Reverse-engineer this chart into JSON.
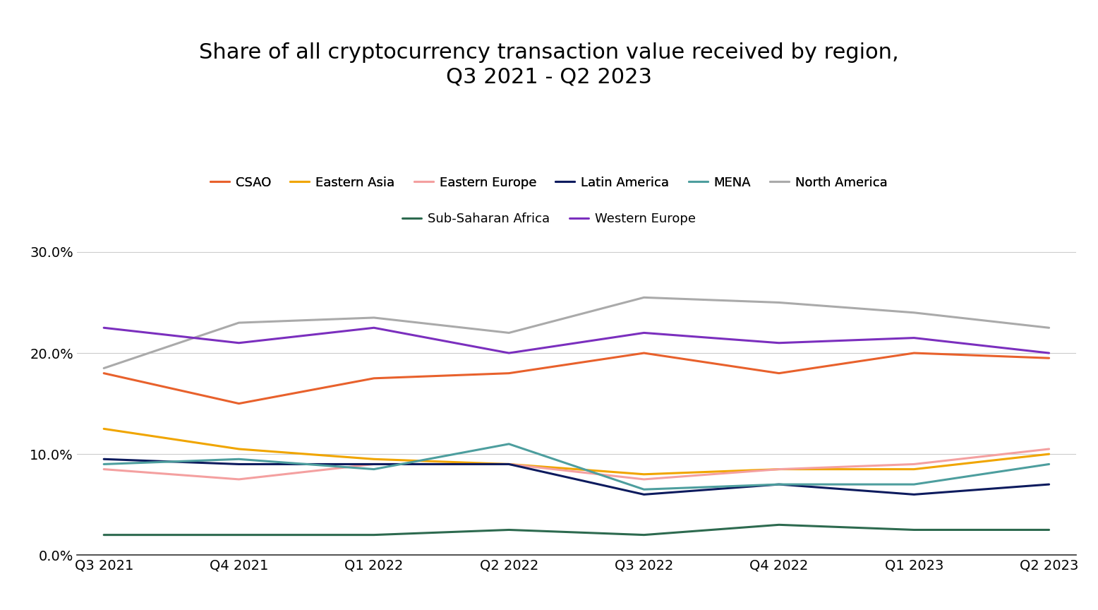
{
  "title": "Share of all cryptocurrency transaction value received by region,\nQ3 2021 - Q2 2023",
  "x_labels": [
    "Q3 2021",
    "Q4 2021",
    "Q1 2022",
    "Q2 2022",
    "Q3 2022",
    "Q4 2022",
    "Q1 2023",
    "Q2 2023"
  ],
  "series": {
    "CSAO": {
      "color": "#E8612C",
      "values": [
        18.0,
        15.0,
        17.5,
        18.0,
        20.0,
        18.0,
        20.0,
        19.5
      ]
    },
    "Eastern Asia": {
      "color": "#F0A500",
      "values": [
        12.5,
        10.5,
        9.5,
        9.0,
        8.0,
        8.5,
        8.5,
        10.0
      ]
    },
    "Eastern Europe": {
      "color": "#F4A0A0",
      "values": [
        8.5,
        7.5,
        9.0,
        9.0,
        7.5,
        8.5,
        9.0,
        10.5
      ]
    },
    "Latin America": {
      "color": "#0D1B5E",
      "values": [
        9.5,
        9.0,
        9.0,
        9.0,
        6.0,
        7.0,
        6.0,
        7.0
      ]
    },
    "MENA": {
      "color": "#4D9E9E",
      "values": [
        9.0,
        9.5,
        8.5,
        11.0,
        6.5,
        7.0,
        7.0,
        9.0
      ]
    },
    "North America": {
      "color": "#AAAAAA",
      "values": [
        18.5,
        23.0,
        23.5,
        22.0,
        25.5,
        25.0,
        24.0,
        22.5
      ]
    },
    "Sub-Saharan Africa": {
      "color": "#2D6A4F",
      "values": [
        2.0,
        2.0,
        2.0,
        2.5,
        2.0,
        3.0,
        2.5,
        2.5
      ]
    },
    "Western Europe": {
      "color": "#7B2FBE",
      "values": [
        22.5,
        21.0,
        22.5,
        20.0,
        22.0,
        21.0,
        21.5,
        20.0
      ]
    }
  },
  "ylim": [
    0.0,
    32.0
  ],
  "yticks": [
    0.0,
    10.0,
    20.0,
    30.0
  ],
  "background_color": "#FFFFFF",
  "title_fontsize": 22,
  "tick_fontsize": 14,
  "legend_fontsize": 13,
  "line_width": 2.2
}
